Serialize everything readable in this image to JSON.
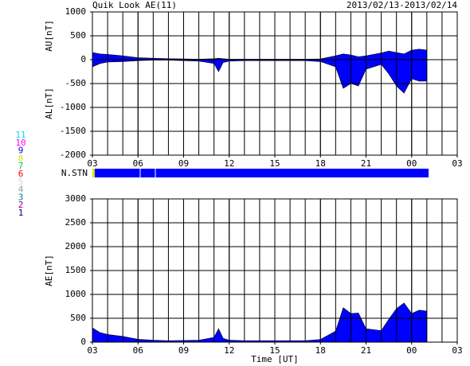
{
  "chart_data": [
    {
      "type": "area",
      "title": "Quik Look AE(11)",
      "subtitle": "2013/02/13-2013/02/14",
      "x": [
        0,
        0.5,
        1,
        2,
        3,
        4,
        5,
        6,
        7,
        8,
        8.3,
        8.6,
        9,
        10,
        11,
        12,
        13,
        14,
        15,
        16,
        16.5,
        17,
        17.5,
        18,
        19,
        19.5,
        20,
        20.5,
        21,
        21.5,
        22
      ],
      "series": [
        {
          "name": "AU[nT]",
          "color": "#0000ff",
          "values": [
            150,
            120,
            110,
            80,
            40,
            30,
            20,
            15,
            10,
            20,
            30,
            20,
            10,
            10,
            10,
            10,
            10,
            10,
            15,
            80,
            120,
            100,
            60,
            80,
            140,
            180,
            150,
            120,
            200,
            220,
            200
          ]
        },
        {
          "name": "AL[nT]",
          "color": "#0000ff",
          "values": [
            -150,
            -80,
            -50,
            -40,
            -20,
            -10,
            -10,
            -20,
            -30,
            -80,
            -250,
            -60,
            -30,
            -20,
            -20,
            -20,
            -20,
            -20,
            -40,
            -150,
            -600,
            -500,
            -550,
            -200,
            -100,
            -300,
            -550,
            -700,
            -400,
            -450,
            -450
          ]
        }
      ],
      "xlim": [
        0,
        24
      ],
      "xticks": [
        {
          "value": 0,
          "label": "03"
        },
        {
          "value": 3,
          "label": "06"
        },
        {
          "value": 6,
          "label": "09"
        },
        {
          "value": 9,
          "label": "12"
        },
        {
          "value": 12,
          "label": "15"
        },
        {
          "value": 15,
          "label": "18"
        },
        {
          "value": 18,
          "label": "21"
        },
        {
          "value": 21,
          "label": "00"
        },
        {
          "value": 24,
          "label": "03"
        }
      ],
      "ylim": [
        -2000,
        1000
      ],
      "yticks": [
        -2000,
        -1500,
        -1000,
        -500,
        0,
        500,
        1000
      ],
      "grid": true
    },
    {
      "type": "area",
      "xlabel": "Time [UT]",
      "x": [
        0,
        0.5,
        1,
        2,
        3,
        4,
        5,
        6,
        7,
        8,
        8.3,
        8.6,
        9,
        10,
        11,
        12,
        13,
        14,
        15,
        16,
        16.5,
        17,
        17.5,
        18,
        19,
        19.5,
        20,
        20.5,
        21,
        21.5,
        22
      ],
      "series": [
        {
          "name": "AE[nT]",
          "color": "#0000ff",
          "values": [
            300,
            200,
            160,
            120,
            60,
            40,
            30,
            35,
            40,
            100,
            280,
            80,
            40,
            30,
            30,
            30,
            30,
            30,
            55,
            230,
            720,
            600,
            610,
            280,
            240,
            480,
            700,
            820,
            600,
            670,
            650
          ]
        }
      ],
      "xlim": [
        0,
        24
      ],
      "xticks": [
        {
          "value": 0,
          "label": "03"
        },
        {
          "value": 3,
          "label": "06"
        },
        {
          "value": 6,
          "label": "09"
        },
        {
          "value": 9,
          "label": "12"
        },
        {
          "value": 12,
          "label": "15"
        },
        {
          "value": 15,
          "label": "18"
        },
        {
          "value": 18,
          "label": "21"
        },
        {
          "value": 21,
          "label": "00"
        },
        {
          "value": 24,
          "label": "03"
        }
      ],
      "ylim": [
        0,
        3000
      ],
      "yticks": [
        0,
        500,
        1000,
        1500,
        2000,
        2500,
        3000
      ],
      "grid": true
    }
  ],
  "station_panel": {
    "label": "N.STN",
    "color": "#0000ff",
    "legend": [
      {
        "label": "11",
        "color": "#00e0e0"
      },
      {
        "label": "10",
        "color": "#ff00ff"
      },
      {
        "label": "9",
        "color": "#0000ff"
      },
      {
        "label": "8",
        "color": "#e0e000"
      },
      {
        "label": "7",
        "color": "#00c060"
      },
      {
        "label": "6",
        "color": "#ff0000"
      },
      {
        "label": "5",
        "color": "#d8d8d8"
      },
      {
        "label": "4",
        "color": "#999999"
      },
      {
        "label": "3",
        "color": "#008888"
      },
      {
        "label": "2",
        "color": "#880088"
      },
      {
        "label": "1",
        "color": "#0000aa"
      }
    ]
  }
}
